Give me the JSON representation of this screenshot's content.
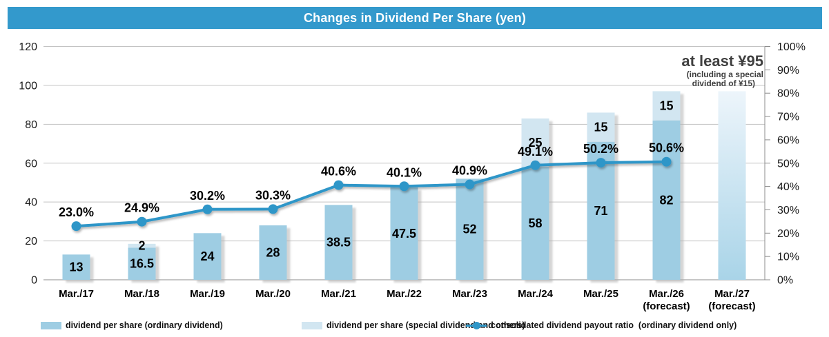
{
  "title": "Changes in Dividend Per Share (yen)",
  "colors": {
    "header_bg": "#3399CC",
    "title_text": "#FFFFFF",
    "ordinary_bar": "#9ECDE3",
    "special_bar": "#D2E6F1",
    "payout_line": "#2E96C8",
    "gridline": "#C3C3C3",
    "axis_line": "#8C8C8C",
    "label_text": "#000000",
    "annotation_text": "#404040",
    "forecast_gradient_top": "#EDF5FB",
    "forecast_gradient_bottom": "#A9D4E8"
  },
  "chart_data": {
    "type": "bar+line combo (stacked bars, secondary percentage axis)",
    "title": "Changes in Dividend Per Share (yen)",
    "grid": true,
    "legend_position": "bottom",
    "categories": [
      "Mar./17",
      "Mar./18",
      "Mar./19",
      "Mar./20",
      "Mar./21",
      "Mar./22",
      "Mar./23",
      "Mar./24",
      "Mar./25",
      "Mar./26",
      "Mar./27"
    ],
    "category_sublabels": [
      "",
      "",
      "",
      "",
      "",
      "",
      "",
      "",
      "",
      "(forecast)",
      "(forecast)"
    ],
    "series": [
      {
        "name": "dividend per share (ordinary dividend)",
        "type": "bar",
        "values": [
          13,
          16.5,
          24,
          28,
          38.5,
          47.5,
          52,
          58,
          71,
          82,
          null
        ],
        "labels": [
          "13",
          "16.5",
          "24",
          "28",
          "38.5",
          "47.5",
          "52",
          "58",
          "71",
          "82",
          ""
        ]
      },
      {
        "name": "dividend per share (special dividend and others)",
        "type": "bar",
        "values": [
          null,
          2,
          null,
          null,
          null,
          null,
          null,
          25,
          15,
          15,
          null
        ],
        "labels": [
          "",
          "2",
          "",
          "",
          "",
          "",
          "",
          "25",
          "15",
          "15",
          ""
        ]
      },
      {
        "name": "consolidated dividend payout ratio  (ordinary dividend only)",
        "type": "line",
        "values": [
          23.0,
          24.9,
          30.2,
          30.3,
          40.6,
          40.1,
          40.9,
          49.1,
          50.2,
          50.6,
          null
        ],
        "labels": [
          "23.0%",
          "24.9%",
          "30.2%",
          "30.3%",
          "40.6%",
          "40.1%",
          "40.9%",
          "49.1%",
          "50.2%",
          "50.6%",
          ""
        ]
      }
    ],
    "left_axis": {
      "min": 0,
      "max": 120,
      "step": 20,
      "ticks": [
        "0",
        "20",
        "40",
        "60",
        "80",
        "100",
        "120"
      ]
    },
    "right_axis": {
      "min": 0,
      "max": 100,
      "step": 10,
      "ticks": [
        "0%",
        "10%",
        "20%",
        "30%",
        "40%",
        "50%",
        "60%",
        "70%",
        "80%",
        "90%",
        "100%"
      ]
    },
    "forecast_bar": {
      "category_index": 10,
      "bar_top_value": 97,
      "note": "gradient fade bar"
    },
    "annotation": {
      "title": "at least ¥95",
      "subtitle_line1": "(including a special",
      "subtitle_line2": "dividend of ¥15)"
    }
  },
  "legend": [
    {
      "icon": "ordinary-swatch",
      "label": "dividend per share (ordinary dividend)"
    },
    {
      "icon": "special-swatch",
      "label": "dividend per share (special dividend and others)"
    },
    {
      "icon": "payout-line",
      "label": "consolidated dividend payout ratio  (ordinary dividend only)"
    }
  ]
}
